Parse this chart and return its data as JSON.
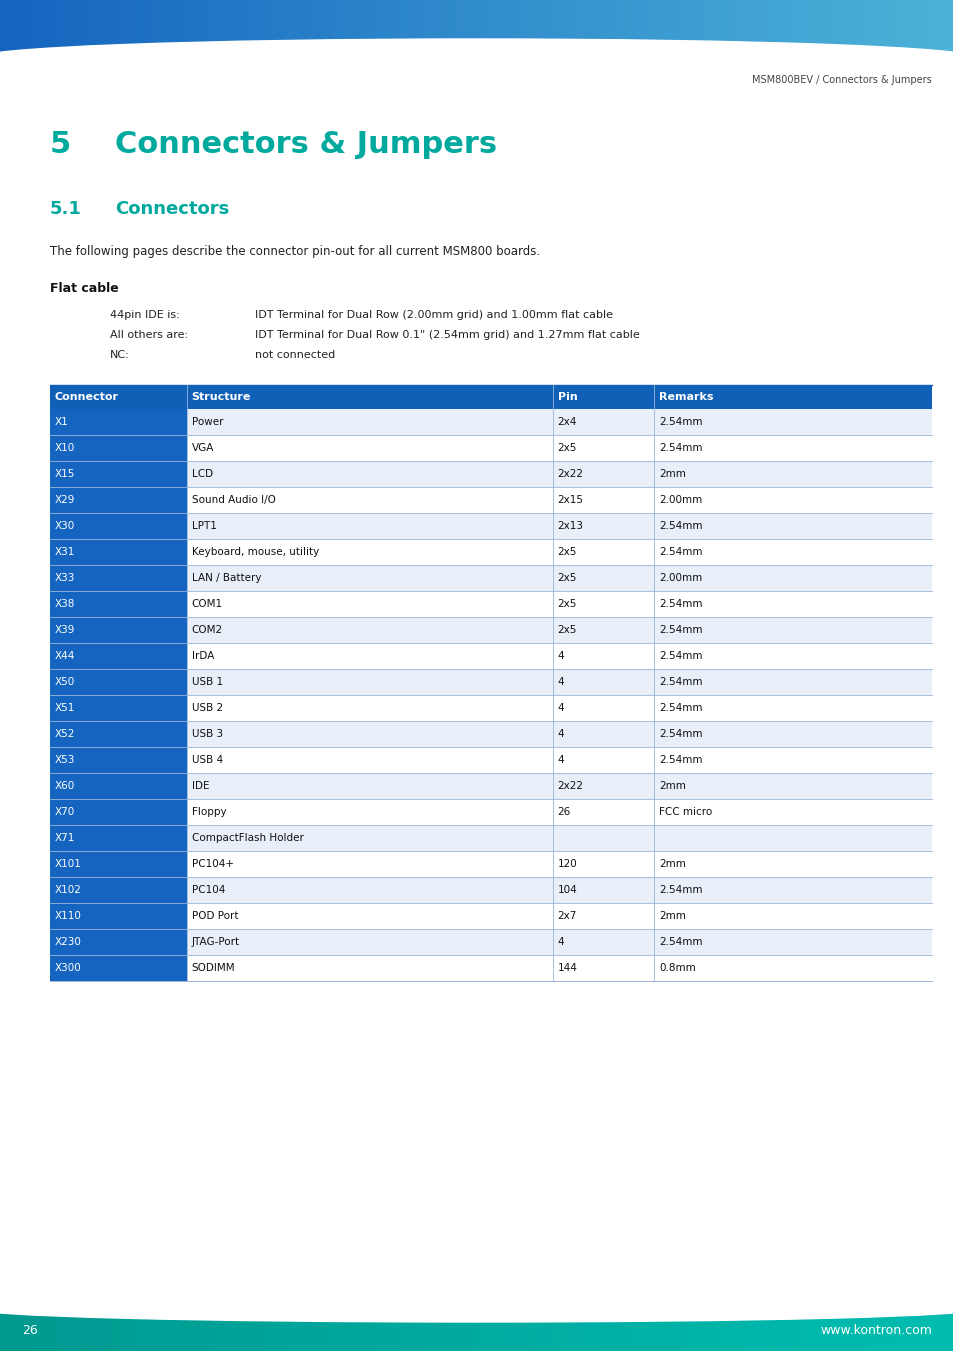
{
  "page_title": "MSM800BEV / Connectors & Jumpers",
  "section_number": "5",
  "section_name": "Connectors & Jumpers",
  "subsection_number": "5.1",
  "subsection_name": "Connectors",
  "intro_text": "The following pages describe the connector pin-out for all current MSM800 boards.",
  "flat_cable_title": "Flat cable",
  "flat_cable_items": [
    [
      "44pin IDE is:",
      "IDT Terminal for Dual Row (2.00mm grid) and 1.00mm flat cable"
    ],
    [
      "All others are:",
      "IDT Terminal for Dual Row 0.1\" (2.54mm grid) and 1.27mm flat cable"
    ],
    [
      "NC:",
      "not connected"
    ]
  ],
  "table_headers": [
    "Connector",
    "Structure",
    "Pin",
    "Remarks"
  ],
  "table_rows": [
    [
      "X1",
      "Power",
      "2x4",
      "2.54mm"
    ],
    [
      "X10",
      "VGA",
      "2x5",
      "2.54mm"
    ],
    [
      "X15",
      "LCD",
      "2x22",
      "2mm"
    ],
    [
      "X29",
      "Sound Audio I/O",
      "2x15",
      "2.00mm"
    ],
    [
      "X30",
      "LPT1",
      "2x13",
      "2.54mm"
    ],
    [
      "X31",
      "Keyboard, mouse, utility",
      "2x5",
      "2.54mm"
    ],
    [
      "X33",
      "LAN / Battery",
      "2x5",
      "2.00mm"
    ],
    [
      "X38",
      "COM1",
      "2x5",
      "2.54mm"
    ],
    [
      "X39",
      "COM2",
      "2x5",
      "2.54mm"
    ],
    [
      "X44",
      "IrDA",
      "4",
      "2.54mm"
    ],
    [
      "X50",
      "USB 1",
      "4",
      "2.54mm"
    ],
    [
      "X51",
      "USB 2",
      "4",
      "2.54mm"
    ],
    [
      "X52",
      "USB 3",
      "4",
      "2.54mm"
    ],
    [
      "X53",
      "USB 4",
      "4",
      "2.54mm"
    ],
    [
      "X60",
      "IDE",
      "2x22",
      "2mm"
    ],
    [
      "X70",
      "Floppy",
      "26",
      "FCC micro"
    ],
    [
      "X71",
      "CompactFlash Holder",
      "",
      ""
    ],
    [
      "X101",
      "PC104+",
      "120",
      "2mm"
    ],
    [
      "X102",
      "PC104",
      "104",
      "2.54mm"
    ],
    [
      "X110",
      "POD Port",
      "2x7",
      "2mm"
    ],
    [
      "X230",
      "JTAG-Port",
      "4",
      "2.54mm"
    ],
    [
      "X300",
      "SODIMM",
      "144",
      "0.8mm"
    ]
  ],
  "header_bg": "#1060B8",
  "header_text_color": "#ffffff",
  "connector_col_bg": "#1565C0",
  "connector_col_text": "#ffffff",
  "row_bg_odd": "#E8EFF8",
  "row_bg_even": "#ffffff",
  "divider_color": "#9ab5d8",
  "table_text_color": "#111111",
  "teal_color": "#00A99D",
  "top_bar_left": "#1565C0",
  "top_bar_right": "#4db3d8",
  "bottom_bar_color": "#00A99D",
  "page_number": "26",
  "website": "www.kontron.com"
}
